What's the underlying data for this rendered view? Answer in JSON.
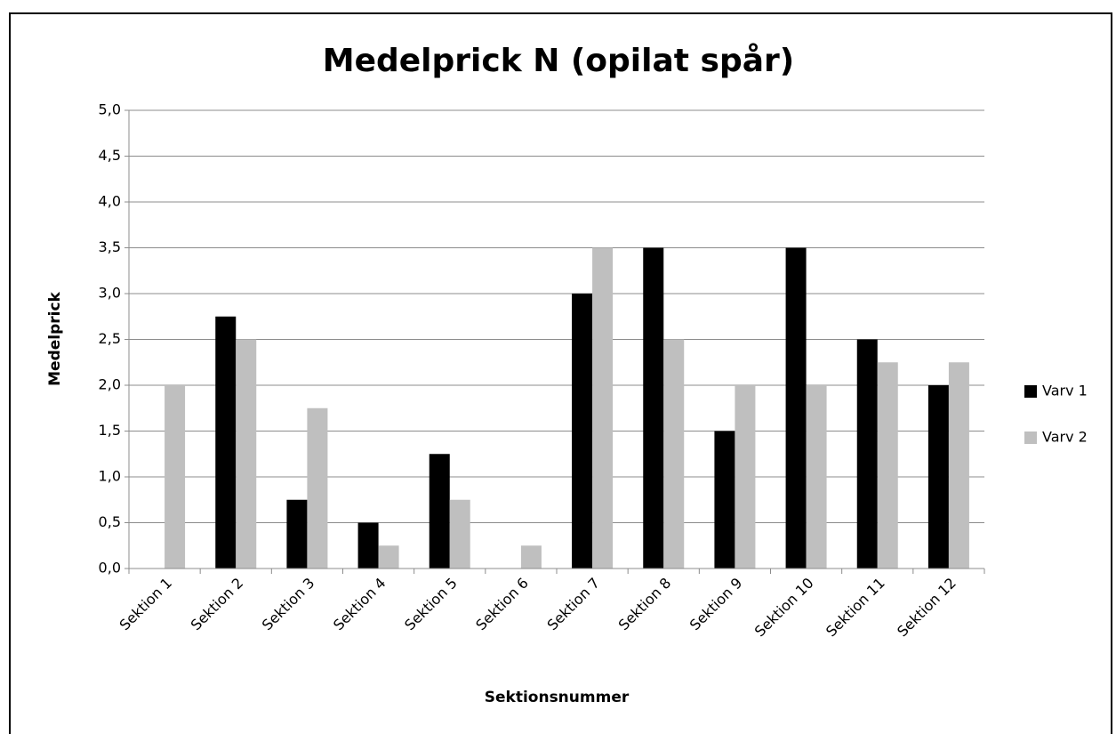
{
  "chart_data": {
    "type": "bar",
    "title": "Medelprick N (opilat spår)",
    "x_label": "Sektionsnummer",
    "y_label": "Medelprick",
    "categories": [
      "Sektion 1",
      "Sektion 2",
      "Sektion 3",
      "Sektion 4",
      "Sektion 5",
      "Sektion 6",
      "Sektion 7",
      "Sektion 8",
      "Sektion 9",
      "Sektion 10",
      "Sektion 11",
      "Sektion 12"
    ],
    "series": [
      {
        "name": "Varv 1",
        "color": "#000000",
        "values": [
          0,
          2.75,
          0.75,
          0.5,
          1.25,
          0,
          3,
          3.5,
          1.5,
          3.5,
          2.5,
          2
        ]
      },
      {
        "name": "Varv 2",
        "color": "#bfbfbf",
        "values": [
          2,
          2.5,
          1.75,
          0.25,
          0.75,
          0.25,
          3.5,
          2.5,
          2,
          2,
          2.25,
          2.25
        ]
      }
    ],
    "ylim": [
      0,
      5
    ],
    "yticks": [
      {
        "value": 0,
        "label": "0,0"
      },
      {
        "value": 0.5,
        "label": "0,5"
      },
      {
        "value": 1,
        "label": "1,0"
      },
      {
        "value": 1.5,
        "label": "1,5"
      },
      {
        "value": 2,
        "label": "2,0"
      },
      {
        "value": 2.5,
        "label": "2,5"
      },
      {
        "value": 3,
        "label": "3,0"
      },
      {
        "value": 3.5,
        "label": "3,5"
      },
      {
        "value": 4,
        "label": "4,0"
      },
      {
        "value": 4.5,
        "label": "4,5"
      },
      {
        "value": 5,
        "label": "5,0"
      }
    ],
    "grid": true,
    "legend": "right"
  }
}
